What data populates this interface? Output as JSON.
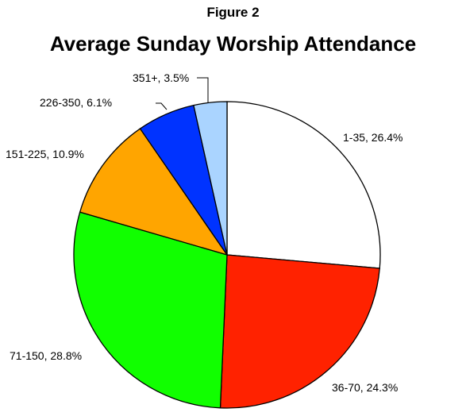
{
  "figure_label": "Figure 2",
  "chart_data": {
    "type": "pie",
    "title": "Average Sunday Worship Attendance",
    "slices": [
      {
        "label": "1-35",
        "value": 26.4,
        "display": "1-35, 26.4%",
        "color": "#ffffff"
      },
      {
        "label": "36-70",
        "value": 24.3,
        "display": "36-70, 24.3%",
        "color": "#ff2200"
      },
      {
        "label": "71-150",
        "value": 28.8,
        "display": "71-150, 28.8%",
        "color": "#11ff00"
      },
      {
        "label": "151-225",
        "value": 10.9,
        "display": "151-225, 10.9%",
        "color": "#ffa500"
      },
      {
        "label": "226-350",
        "value": 6.1,
        "display": "226-350, 6.1%",
        "color": "#0033ff"
      },
      {
        "label": "351+",
        "value": 3.5,
        "display": "351+, 3.5%",
        "color": "#aad4ff"
      }
    ],
    "start": "12 o'clock",
    "direction": "clockwise",
    "legend": "none"
  }
}
